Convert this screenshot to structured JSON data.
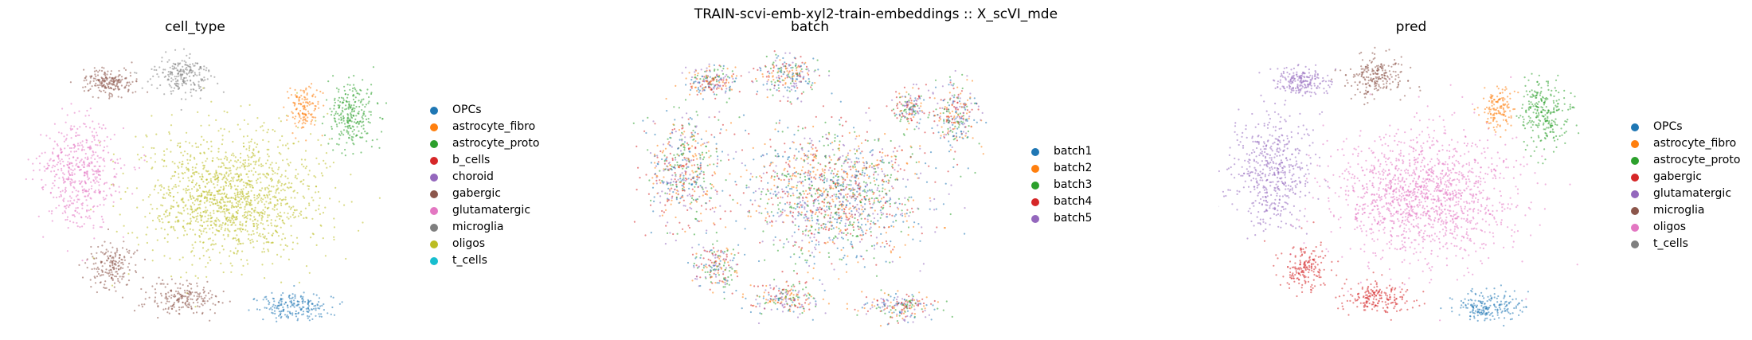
{
  "suptitle": "TRAIN-scvi-emb-xyl2-train-embeddings :: X_scVI_mde",
  "chart_data": [
    {
      "type": "scatter",
      "title": "cell_type",
      "legend_placement": "right",
      "categories": [
        {
          "name": "OPCs",
          "color": "#1f77b4"
        },
        {
          "name": "astrocyte_fibro",
          "color": "#ff7f0e"
        },
        {
          "name": "astrocyte_proto",
          "color": "#2ca02c"
        },
        {
          "name": "b_cells",
          "color": "#d62728"
        },
        {
          "name": "choroid",
          "color": "#9467bd"
        },
        {
          "name": "gabergic",
          "color": "#8c564b"
        },
        {
          "name": "glutamatergic",
          "color": "#e377c2"
        },
        {
          "name": "microglia",
          "color": "#7f7f7f"
        },
        {
          "name": "oligos",
          "color": "#bcbd22"
        },
        {
          "name": "t_cells",
          "color": "#17becf"
        }
      ],
      "cluster_colors": {
        "big": "#bcbd22",
        "left": "#e377c2",
        "topleft": "#8c564b",
        "topmid": "#7f7f7f",
        "topright_a": "#ff7f0e",
        "topright_b": "#2ca02c",
        "botleft": "#8c564b",
        "botmid": "#8c564b",
        "botright": "#1f77b4"
      },
      "grid": false,
      "axes_visible": false
    },
    {
      "type": "scatter",
      "title": "batch",
      "legend_placement": "right",
      "categories": [
        {
          "name": "batch1",
          "color": "#1f77b4"
        },
        {
          "name": "batch2",
          "color": "#ff7f0e"
        },
        {
          "name": "batch3",
          "color": "#2ca02c"
        },
        {
          "name": "batch4",
          "color": "#d62728"
        },
        {
          "name": "batch5",
          "color": "#9467bd"
        }
      ],
      "cluster_colors": {
        "big": "mixed",
        "left": "mixed",
        "topleft": "mixed",
        "topmid": "mixed",
        "topright_a": "mixed",
        "topright_b": "mixed",
        "botleft": "mixed",
        "botmid": "mixed",
        "botright": "mixed"
      },
      "grid": false,
      "axes_visible": false
    },
    {
      "type": "scatter",
      "title": "pred",
      "legend_placement": "right",
      "categories": [
        {
          "name": "OPCs",
          "color": "#1f77b4"
        },
        {
          "name": "astrocyte_fibro",
          "color": "#ff7f0e"
        },
        {
          "name": "astrocyte_proto",
          "color": "#2ca02c"
        },
        {
          "name": "gabergic",
          "color": "#d62728"
        },
        {
          "name": "glutamatergic",
          "color": "#9467bd"
        },
        {
          "name": "microglia",
          "color": "#8c564b"
        },
        {
          "name": "oligos",
          "color": "#e377c2"
        },
        {
          "name": "t_cells",
          "color": "#7f7f7f"
        }
      ],
      "cluster_colors": {
        "big": "#e377c2",
        "left": "#9467bd",
        "topleft": "#9467bd",
        "topmid": "#8c564b",
        "topright_a": "#ff7f0e",
        "topright_b": "#2ca02c",
        "botleft": "#d62728",
        "botmid": "#d62728",
        "botright": "#1f77b4"
      },
      "grid": false,
      "axes_visible": false
    }
  ]
}
